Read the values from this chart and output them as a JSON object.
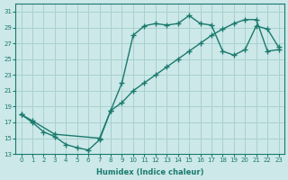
{
  "xlabel": "Humidex (Indice chaleur)",
  "bg_color": "#cce8e8",
  "grid_color": "#a8d0d0",
  "line_color": "#1a7a6e",
  "xlim": [
    -0.5,
    23.5
  ],
  "ylim": [
    13,
    32
  ],
  "yticks": [
    13,
    15,
    17,
    19,
    21,
    23,
    25,
    27,
    29,
    31
  ],
  "xticks": [
    0,
    1,
    2,
    3,
    4,
    5,
    6,
    7,
    8,
    9,
    10,
    11,
    12,
    13,
    14,
    15,
    16,
    17,
    18,
    19,
    20,
    21,
    22,
    23
  ],
  "curve1_x": [
    0,
    1,
    2,
    3,
    4,
    5,
    6,
    7,
    8,
    9,
    10,
    11,
    12,
    13,
    14,
    15,
    16,
    17,
    18,
    19,
    20,
    21,
    22,
    23
  ],
  "curve1_y": [
    18.0,
    17.0,
    15.8,
    15.2,
    14.2,
    13.8,
    13.5,
    14.8,
    18.5,
    22.0,
    28.0,
    29.2,
    29.5,
    29.3,
    29.5,
    30.5,
    29.5,
    29.3,
    26.0,
    25.5,
    26.2,
    29.2,
    28.8,
    26.5
  ],
  "curve2_x": [
    0,
    1,
    3,
    7,
    8,
    9,
    10,
    11,
    12,
    13,
    14,
    15,
    16,
    17,
    18,
    19,
    20,
    21,
    22,
    23
  ],
  "curve2_y": [
    18.0,
    17.2,
    15.5,
    15.0,
    18.5,
    19.5,
    21.0,
    22.0,
    23.0,
    24.0,
    25.0,
    26.0,
    27.0,
    28.0,
    28.8,
    29.5,
    30.0,
    30.0,
    26.0,
    26.2
  ]
}
